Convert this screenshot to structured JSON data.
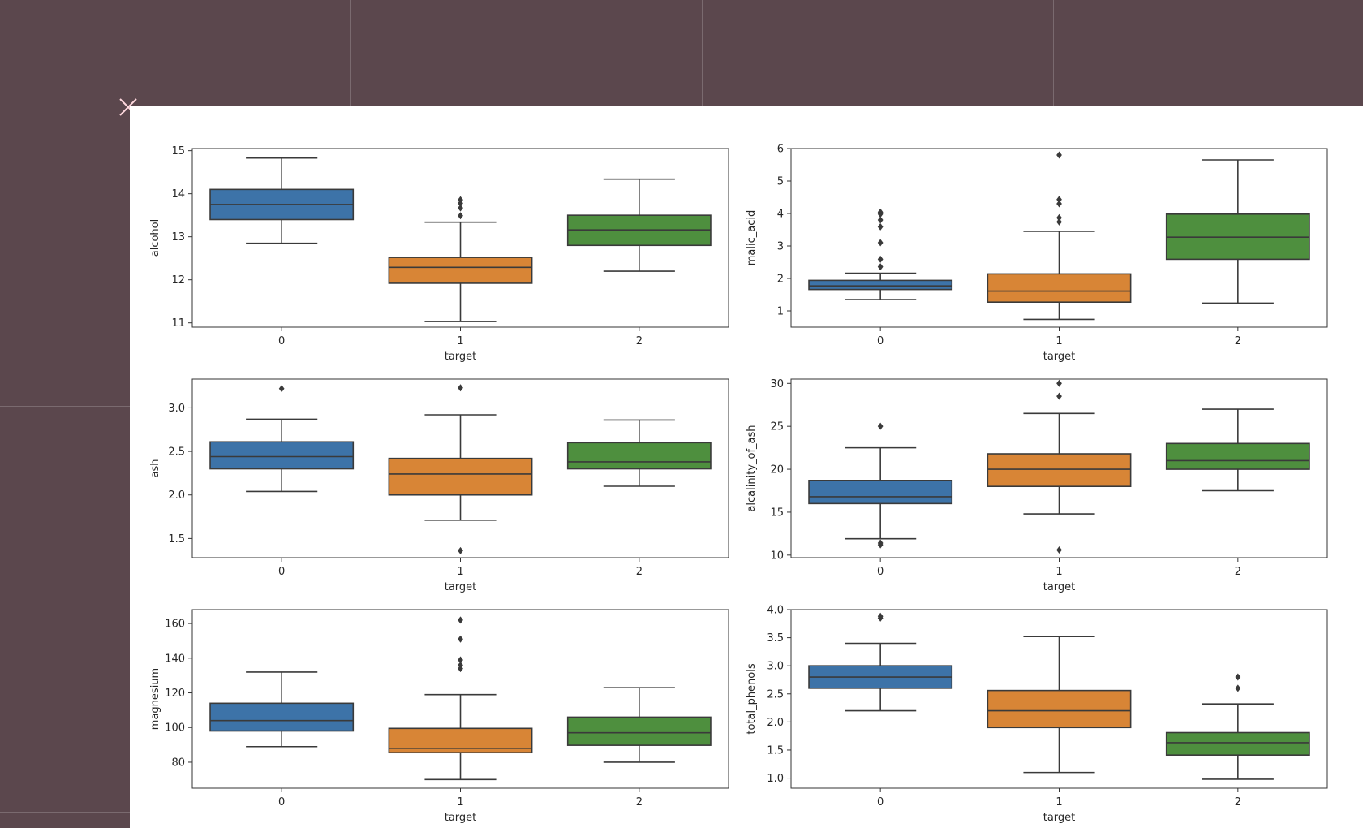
{
  "chart_data": [
    {
      "type": "box",
      "xlabel": "target",
      "ylabel": "alcohol",
      "categories": [
        "0",
        "1",
        "2"
      ],
      "ylim": [
        10.9,
        15.05
      ],
      "yticks": [
        11,
        12,
        13,
        14,
        15
      ],
      "ytick_labels": [
        "11",
        "12",
        "13",
        "14",
        "15"
      ],
      "boxes": [
        {
          "category": "0",
          "whisker_low": 12.85,
          "q1": 13.4,
          "median": 13.75,
          "q3": 14.1,
          "whisker_high": 14.83,
          "outliers": []
        },
        {
          "category": "1",
          "whisker_low": 11.03,
          "q1": 11.92,
          "median": 12.29,
          "q3": 12.52,
          "whisker_high": 13.34,
          "outliers": [
            13.49,
            13.67,
            13.78,
            13.86
          ]
        },
        {
          "category": "2",
          "whisker_low": 12.2,
          "q1": 12.8,
          "median": 13.16,
          "q3": 13.5,
          "whisker_high": 14.34,
          "outliers": []
        }
      ]
    },
    {
      "type": "box",
      "xlabel": "target",
      "ylabel": "malic_acid",
      "categories": [
        "0",
        "1",
        "2"
      ],
      "ylim": [
        0.5,
        6.0
      ],
      "yticks": [
        1,
        2,
        3,
        4,
        5,
        6
      ],
      "ytick_labels": [
        "1",
        "2",
        "3",
        "4",
        "5",
        "6"
      ],
      "boxes": [
        {
          "category": "0",
          "whisker_low": 1.35,
          "q1": 1.66,
          "median": 1.77,
          "q3": 1.94,
          "whisker_high": 2.16,
          "outliers": [
            2.36,
            2.59,
            3.1,
            3.59,
            3.8,
            3.98,
            4.04
          ]
        },
        {
          "category": "1",
          "whisker_low": 0.74,
          "q1": 1.27,
          "median": 1.61,
          "q3": 2.14,
          "whisker_high": 3.45,
          "outliers": [
            3.74,
            3.87,
            4.3,
            4.43,
            5.8
          ]
        },
        {
          "category": "2",
          "whisker_low": 1.24,
          "q1": 2.59,
          "median": 3.27,
          "q3": 3.98,
          "whisker_high": 5.65,
          "outliers": []
        }
      ]
    },
    {
      "type": "box",
      "xlabel": "target",
      "ylabel": "ash",
      "categories": [
        "0",
        "1",
        "2"
      ],
      "ylim": [
        1.28,
        3.33
      ],
      "yticks": [
        1.5,
        2.0,
        2.5,
        3.0
      ],
      "ytick_labels": [
        "1.5",
        "2.0",
        "2.5",
        "3.0"
      ],
      "boxes": [
        {
          "category": "0",
          "whisker_low": 2.04,
          "q1": 2.3,
          "median": 2.44,
          "q3": 2.61,
          "whisker_high": 2.87,
          "outliers": [
            3.22
          ]
        },
        {
          "category": "1",
          "whisker_low": 1.71,
          "q1": 2.0,
          "median": 2.24,
          "q3": 2.42,
          "whisker_high": 2.92,
          "outliers": [
            3.23,
            1.36
          ]
        },
        {
          "category": "2",
          "whisker_low": 2.1,
          "q1": 2.3,
          "median": 2.38,
          "q3": 2.6,
          "whisker_high": 2.86,
          "outliers": []
        }
      ]
    },
    {
      "type": "box",
      "xlabel": "target",
      "ylabel": "alcalinity_of_ash",
      "categories": [
        "0",
        "1",
        "2"
      ],
      "ylim": [
        9.7,
        30.5
      ],
      "yticks": [
        10,
        15,
        20,
        25,
        30
      ],
      "ytick_labels": [
        "10",
        "15",
        "20",
        "25",
        "30"
      ],
      "boxes": [
        {
          "category": "0",
          "whisker_low": 11.9,
          "q1": 16.0,
          "median": 16.8,
          "q3": 18.7,
          "whisker_high": 22.5,
          "outliers": [
            25.0,
            11.4,
            11.2
          ]
        },
        {
          "category": "1",
          "whisker_low": 14.8,
          "q1": 18.0,
          "median": 20.0,
          "q3": 21.8,
          "whisker_high": 26.5,
          "outliers": [
            28.5,
            30.0,
            10.6
          ]
        },
        {
          "category": "2",
          "whisker_low": 17.5,
          "q1": 20.0,
          "median": 21.0,
          "q3": 23.0,
          "whisker_high": 27.0,
          "outliers": []
        }
      ]
    },
    {
      "type": "box",
      "xlabel": "target",
      "ylabel": "magnesium",
      "categories": [
        "0",
        "1",
        "2"
      ],
      "ylim": [
        65,
        168
      ],
      "yticks": [
        80,
        100,
        120,
        140,
        160
      ],
      "ytick_labels": [
        "80",
        "100",
        "120",
        "140",
        "160"
      ],
      "boxes": [
        {
          "category": "0",
          "whisker_low": 89,
          "q1": 98,
          "median": 104,
          "q3": 114,
          "whisker_high": 132,
          "outliers": []
        },
        {
          "category": "1",
          "whisker_low": 70,
          "q1": 85.5,
          "median": 88,
          "q3": 99.5,
          "whisker_high": 119,
          "outliers": [
            134,
            136,
            139,
            151,
            162
          ]
        },
        {
          "category": "2",
          "whisker_low": 80,
          "q1": 89.75,
          "median": 97,
          "q3": 106,
          "whisker_high": 123,
          "outliers": []
        }
      ]
    },
    {
      "type": "box",
      "xlabel": "target",
      "ylabel": "total_phenols",
      "categories": [
        "0",
        "1",
        "2"
      ],
      "ylim": [
        0.82,
        4.0
      ],
      "yticks": [
        1.0,
        1.5,
        2.0,
        2.5,
        3.0,
        3.5,
        4.0
      ],
      "ytick_labels": [
        "1.0",
        "1.5",
        "2.0",
        "2.5",
        "3.0",
        "3.5",
        "4.0"
      ],
      "boxes": [
        {
          "category": "0",
          "whisker_low": 2.2,
          "q1": 2.6,
          "median": 2.8,
          "q3": 3.0,
          "whisker_high": 3.4,
          "outliers": [
            3.85,
            3.88
          ]
        },
        {
          "category": "1",
          "whisker_low": 1.1,
          "q1": 1.9,
          "median": 2.2,
          "q3": 2.56,
          "whisker_high": 3.52,
          "outliers": []
        },
        {
          "category": "2",
          "whisker_low": 0.98,
          "q1": 1.41,
          "median": 1.63,
          "q3": 1.81,
          "whisker_high": 2.32,
          "outliers": [
            2.6,
            2.8
          ]
        }
      ]
    }
  ],
  "colors": {
    "class_0": "#3d73a8",
    "class_1": "#d88536",
    "class_2": "#4e8f3e",
    "box_edge": "#3a3a3a"
  }
}
